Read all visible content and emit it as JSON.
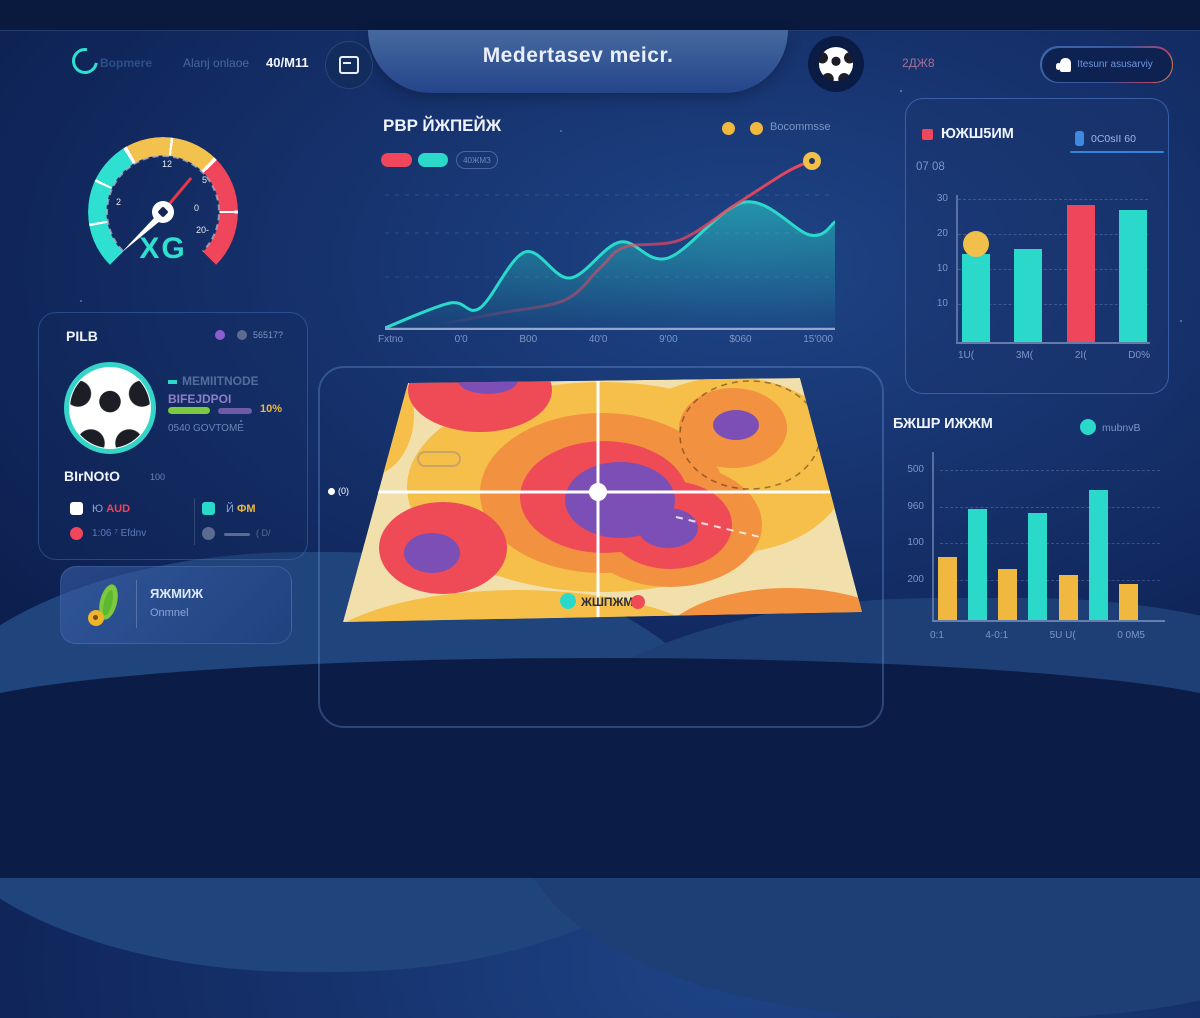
{
  "colors": {
    "teal": "#2bd9cb",
    "red": "#f0465c",
    "yellow": "#f0b83f",
    "purple": "#7b4fb5",
    "accent_blue": "#3f8ae0"
  },
  "header": {
    "nav": [
      "Bopmere",
      "Alanj onlaoe",
      "40/M11"
    ],
    "title": "Medertasev meicr.",
    "badge_text": "2ДЖ8",
    "cta_label": "Itesunr asusarviy"
  },
  "gauge": {
    "label": "XG",
    "ticks": [
      "2",
      "12",
      "5",
      "0",
      "20-"
    ]
  },
  "line_chart": {
    "title": "PBP ЙЖПЕЙЖ",
    "legend_label": "Bocommsse",
    "pill_label": "40ЖМЗ",
    "x_labels": [
      "Fxtno",
      "0'0",
      "B00",
      "40'0",
      "9'00",
      "$060",
      "15'000"
    ],
    "chart_data": {
      "type": "area+line",
      "series": [
        {
          "name": "teal-area",
          "points": [
            [
              0,
              178
            ],
            [
              65,
              153
            ],
            [
              95,
              158
            ],
            [
              140,
              102
            ],
            [
              185,
              128
            ],
            [
              235,
              92
            ],
            [
              283,
              108
            ],
            [
              360,
              52
            ],
            [
              425,
              85
            ],
            [
              450,
              72
            ]
          ]
        },
        {
          "name": "red-line",
          "points": [
            [
              45,
              176
            ],
            [
              115,
              163
            ],
            [
              180,
              150
            ],
            [
              215,
              118
            ],
            [
              240,
              97
            ],
            [
              295,
              90
            ],
            [
              350,
              55
            ],
            [
              400,
              23
            ],
            [
              423,
              12
            ]
          ]
        }
      ],
      "marker": [
        427,
        11
      ]
    }
  },
  "left_panel": {
    "title": "PILB",
    "dots_label": "56517?",
    "stat_line1": "MEMIITNODE",
    "stat_line2": "BIFEJDPOI",
    "stat_pct": "10%",
    "stat_sub": "0540 GOVTOME",
    "section2_title": "BIrNOtO",
    "section2_sub": "100",
    "legend": [
      {
        "prefix": "Ю",
        "label": "AUD"
      },
      {
        "prefix": "Й",
        "label": "ФМ"
      },
      {
        "label": "1:06 ⁷ Efdnv"
      },
      {
        "label": "( D/"
      }
    ],
    "cta_title": "ЯЖМИЖ",
    "cta_sub": "Onmnel"
  },
  "heatmap": {
    "left_label": "(0)",
    "legend_label": "ЖШПЖМ"
  },
  "bar_chart1": {
    "title": "ЮЖШ5ИМ",
    "tab_label": "0C0sII 60",
    "subtitle": "07 08",
    "y_labels": [
      "30",
      "20",
      "10",
      "10"
    ],
    "x_labels": [
      "1U(",
      "3M(",
      "2I(",
      "D0%"
    ],
    "chart_data": {
      "type": "bar",
      "values": [
        18,
        19,
        28,
        27
      ],
      "colors": [
        "teal",
        "teal",
        "red",
        "teal"
      ],
      "ylim": [
        0,
        30
      ],
      "marker_bar": 0,
      "marker_value": 20
    }
  },
  "bar_chart2": {
    "title": "БЖШP ИЖЖМ",
    "legend_label": "mubnvB",
    "y_labels": [
      "500",
      "960",
      "100",
      "200"
    ],
    "x_labels": [
      "0:1",
      "4-0:1",
      "5U U(",
      "0 0M5"
    ],
    "chart_data": {
      "type": "bar",
      "values": [
        0.38,
        0.67,
        0.31,
        0.65,
        0.27,
        0.79,
        0.22
      ],
      "colors": [
        "yellow",
        "teal",
        "yellow",
        "teal",
        "yellow",
        "teal",
        "yellow"
      ],
      "ylim": [
        0,
        1
      ]
    }
  }
}
